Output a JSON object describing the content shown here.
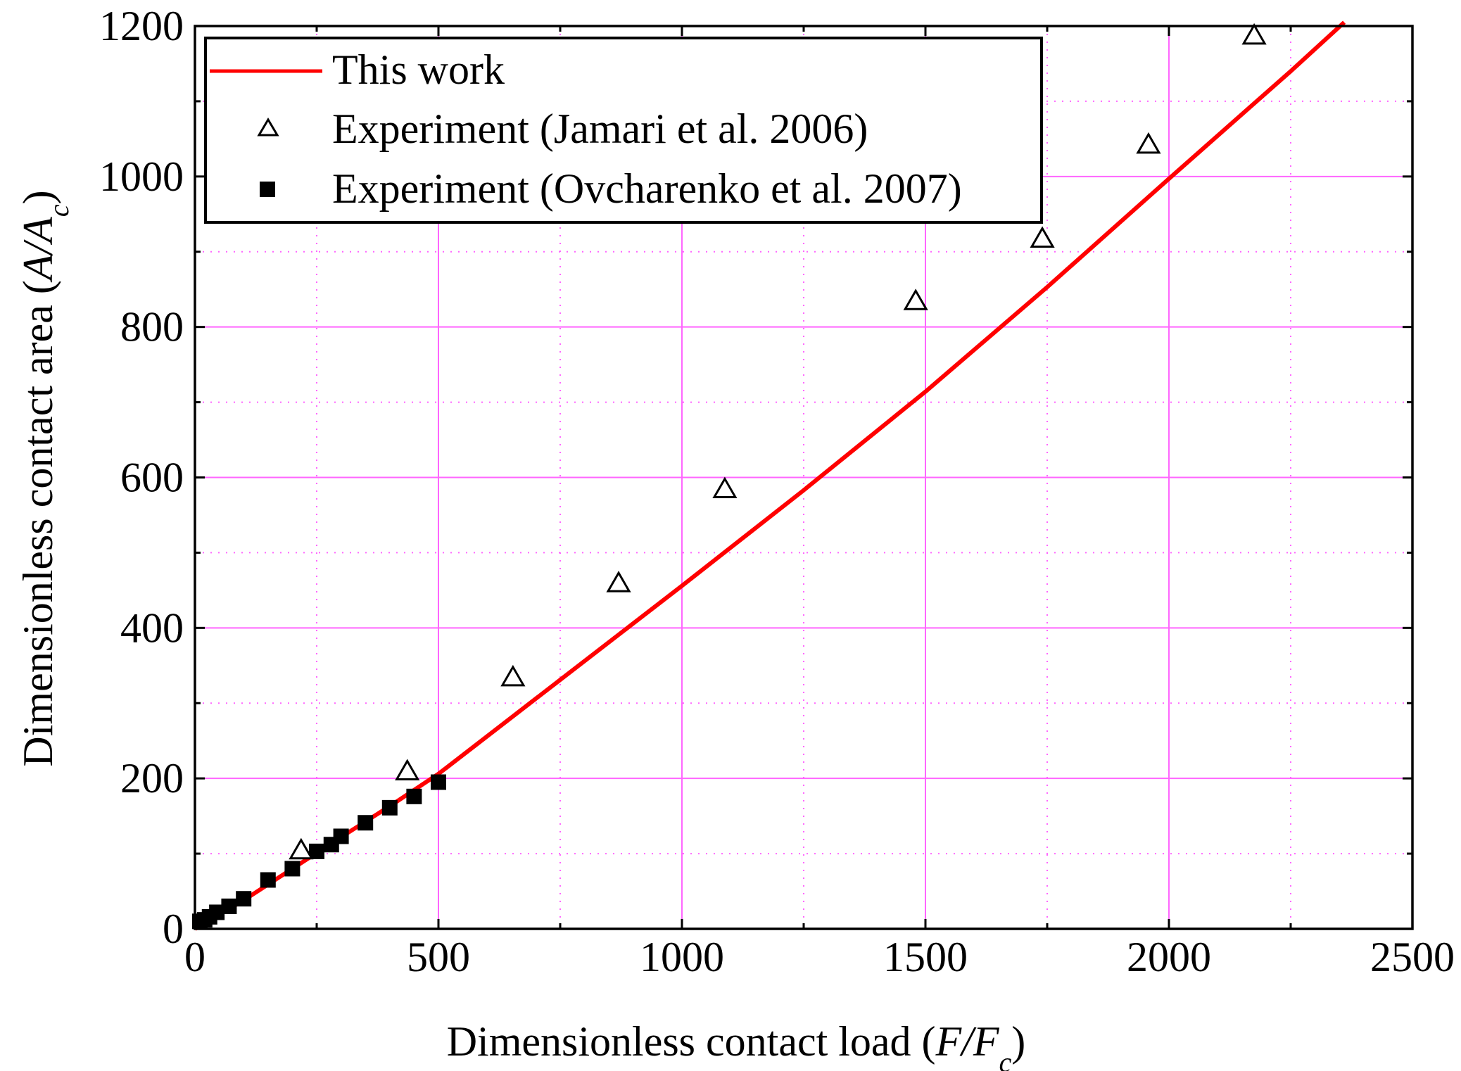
{
  "chart_data": {
    "type": "scatter",
    "title": "",
    "xlabel": {
      "main": "Dimensionless contact load (",
      "italic": "F/F",
      "sub": "c",
      "close": ")"
    },
    "ylabel": {
      "main": "Dimensionless contact area (",
      "italic": "A/A",
      "sub": "c",
      "close": ")"
    },
    "xlim": [
      0,
      2500
    ],
    "ylim": [
      0,
      1200
    ],
    "xticks": [
      0,
      500,
      1000,
      1500,
      2000,
      2500
    ],
    "xtick_labels": [
      "0",
      "500",
      "1000",
      "1500",
      "2000",
      "2500"
    ],
    "yticks": [
      0,
      200,
      400,
      600,
      800,
      1000,
      1200
    ],
    "ytick_labels": [
      "0",
      "200",
      "400",
      "600",
      "800",
      "1000",
      "1200"
    ],
    "grid": true,
    "legend_position": "top-left",
    "series": [
      {
        "name": "This work",
        "kind": "line",
        "color": "#ff0000",
        "x": [
          0,
          100,
          200,
          300,
          400,
          500,
          750,
          1000,
          1250,
          1500,
          1750,
          2000,
          2250,
          2360
        ],
        "y": [
          0,
          38,
          80,
          122,
          163,
          206,
          331,
          456,
          583,
          714,
          853,
          997,
          1140,
          1205
        ]
      },
      {
        "name": "Experiment (Jamari et al. 2006)",
        "kind": "scatter",
        "marker": "open-triangle",
        "color": "#000000",
        "x": [
          218,
          436,
          653,
          870,
          1088,
          1480,
          1740,
          1958,
          2175
        ],
        "y": [
          105,
          210,
          335,
          460,
          585,
          835,
          918,
          1043,
          1188
        ]
      },
      {
        "name": "Experiment (Ovcharenko et al. 2007)",
        "kind": "scatter",
        "marker": "filled-square",
        "color": "#000000",
        "x": [
          10,
          20,
          30,
          45,
          70,
          100,
          150,
          200,
          250,
          280,
          300,
          350,
          400,
          450,
          500
        ],
        "y": [
          10,
          12,
          16,
          22,
          30,
          40,
          65,
          80,
          103,
          112,
          123,
          141,
          161,
          176,
          195
        ]
      }
    ]
  }
}
